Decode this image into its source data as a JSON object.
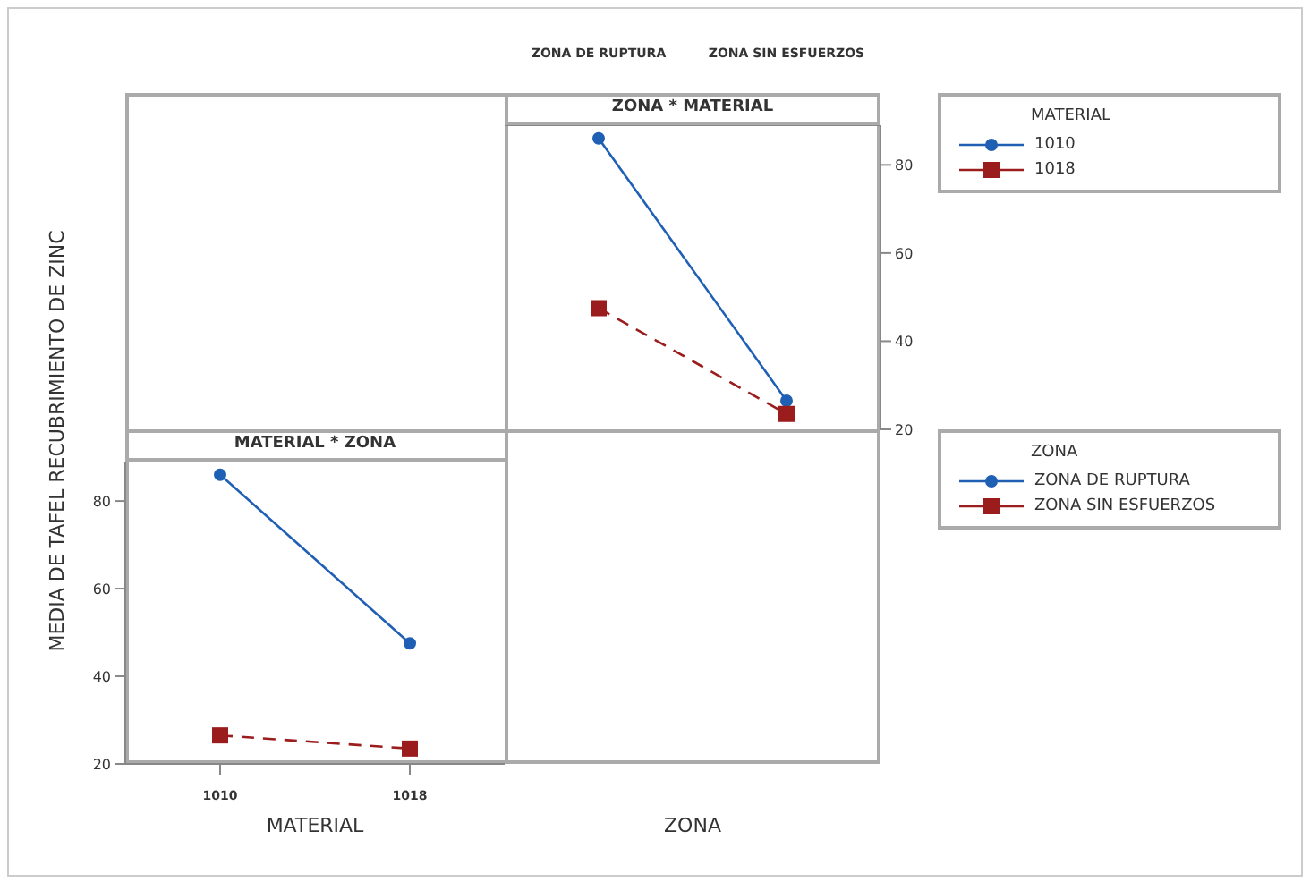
{
  "chart_data": [
    {
      "type": "line",
      "title": "ZONA * MATERIAL",
      "xlabel": "ZONA",
      "categories": [
        "ZONA DE RUPTURA",
        "ZONA SIN ESFUERZOS"
      ],
      "ylim": [
        20,
        89
      ],
      "yticks": [
        20,
        40,
        60,
        80
      ],
      "legend": "right",
      "legend_title": "MATERIAL",
      "series": [
        {
          "name": "1010",
          "color": "#1f5fb4",
          "values": [
            86,
            26.5
          ],
          "marker": "circle",
          "line_style": "solid"
        },
        {
          "name": "1018",
          "color": "#9b1c1c",
          "values": [
            47.5,
            23.5
          ],
          "marker": "square",
          "line_style": "dashed"
        }
      ]
    },
    {
      "type": "line",
      "title": "MATERIAL * ZONA",
      "xlabel": "MATERIAL",
      "ylabel": "MEDIA DE TAFEL RECUBRIMIENTO DE ZINC",
      "categories": [
        "1010",
        "1018"
      ],
      "ylim": [
        20,
        89
      ],
      "yticks": [
        20,
        40,
        60,
        80
      ],
      "legend": "right",
      "legend_title": "ZONA",
      "series": [
        {
          "name": "ZONA DE RUPTURA",
          "color": "#1f5fb4",
          "values": [
            86,
            47.5
          ],
          "marker": "circle",
          "line_style": "solid"
        },
        {
          "name": "ZONA SIN ESFUERZOS",
          "color": "#9b1c1c",
          "values": [
            26.5,
            23.5
          ],
          "marker": "square",
          "line_style": "dashed"
        }
      ]
    }
  ]
}
